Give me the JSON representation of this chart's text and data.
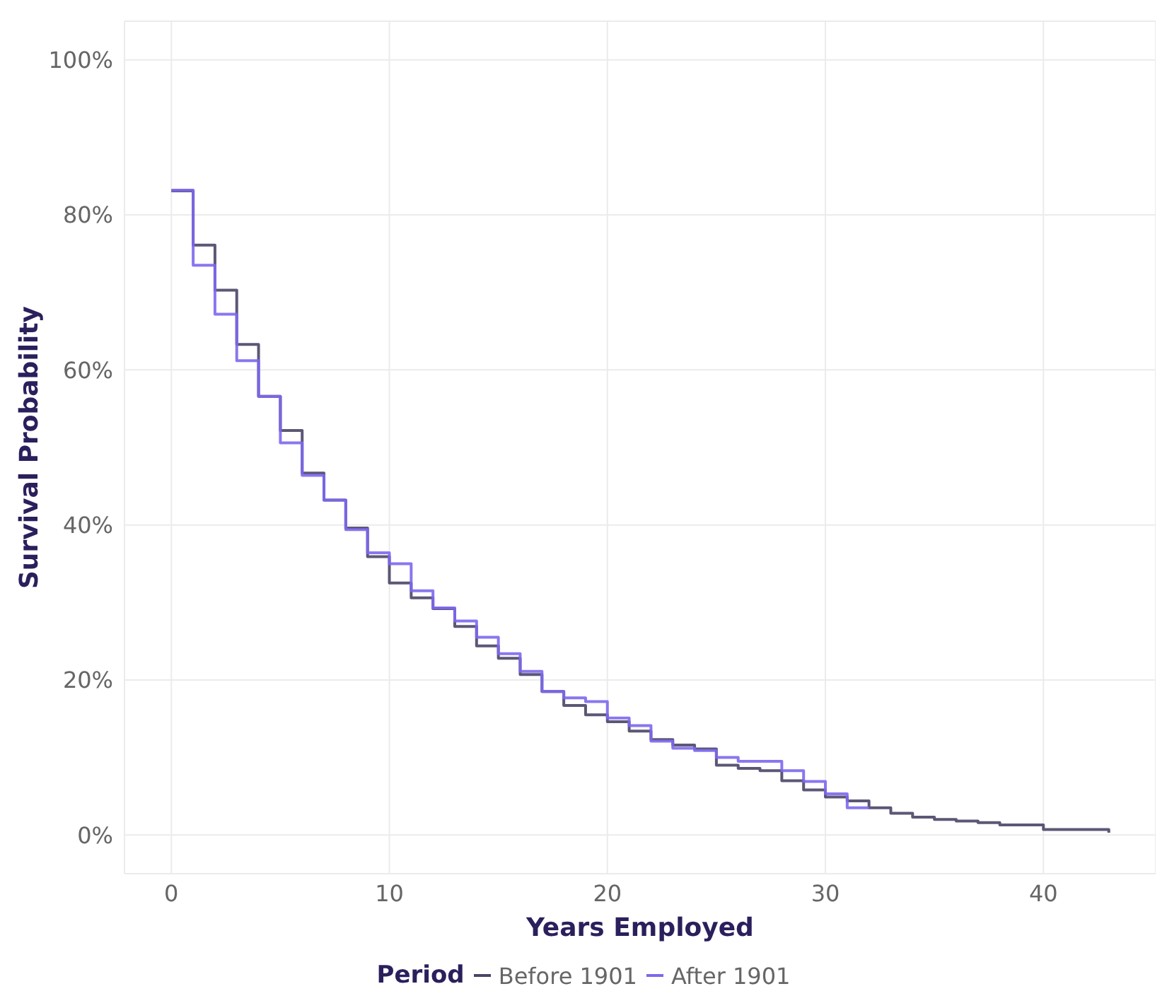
{
  "chart_data": {
    "type": "step",
    "xlabel": "Years Employed",
    "ylabel": "Survival Probability",
    "legend_title": "Period",
    "xlim": [
      -2.15,
      45.15
    ],
    "xticks": [
      0,
      10,
      20,
      30,
      40
    ],
    "ylim": [
      -5,
      105
    ],
    "yticks": [
      {
        "value": 0,
        "label": "0%"
      },
      {
        "value": 20,
        "label": "20%"
      },
      {
        "value": 40,
        "label": "40%"
      },
      {
        "value": 60,
        "label": "60%"
      },
      {
        "value": 80,
        "label": "80%"
      },
      {
        "value": 100,
        "label": "100%"
      }
    ],
    "grid": true,
    "legend": "bottom",
    "line_style": "solid",
    "marker": "none",
    "series": [
      {
        "name": "Before 1901",
        "color": "#4a4566",
        "x": [
          0,
          1,
          2,
          3,
          4,
          5,
          6,
          7,
          8,
          9,
          10,
          11,
          12,
          13,
          14,
          15,
          16,
          17,
          18,
          19,
          20,
          21,
          22,
          23,
          24,
          25,
          26,
          27,
          28,
          29,
          30,
          31,
          32,
          33,
          34,
          35,
          36,
          37,
          38,
          39,
          40,
          41,
          42,
          43
        ],
        "values": [
          83.1,
          76.1,
          70.3,
          63.3,
          56.6,
          52.2,
          46.7,
          43.2,
          39.6,
          35.9,
          32.5,
          30.6,
          29.2,
          26.9,
          24.4,
          22.8,
          20.7,
          18.5,
          16.7,
          15.5,
          14.6,
          13.4,
          12.3,
          11.6,
          11.1,
          9.0,
          8.6,
          8.3,
          7.0,
          5.8,
          4.9,
          4.4,
          3.5,
          2.8,
          2.3,
          2.0,
          1.8,
          1.6,
          1.3,
          1.3,
          0.7,
          0.7,
          0.7,
          0.3
        ]
      },
      {
        "name": "After 1901",
        "color": "#7b68ee",
        "x": [
          0,
          1,
          2,
          3,
          4,
          5,
          6,
          7,
          8,
          9,
          10,
          11,
          12,
          13,
          14,
          15,
          16,
          17,
          18,
          19,
          20,
          21,
          22,
          23,
          24,
          25,
          26,
          27,
          28,
          29,
          30,
          31,
          32
        ],
        "values": [
          83.2,
          73.5,
          67.2,
          61.2,
          56.6,
          50.6,
          46.4,
          43.2,
          39.4,
          36.4,
          35.0,
          31.5,
          29.3,
          27.6,
          25.5,
          23.4,
          21.1,
          18.5,
          17.7,
          17.2,
          15.1,
          14.1,
          12.1,
          11.2,
          10.9,
          10.0,
          9.5,
          9.5,
          8.3,
          6.9,
          5.3,
          3.5,
          3.5
        ]
      }
    ]
  }
}
